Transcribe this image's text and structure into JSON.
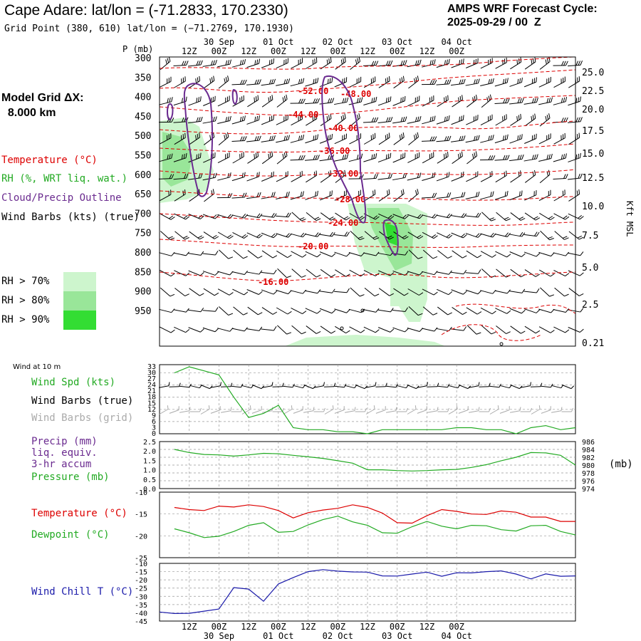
{
  "header": {
    "title": "Cape Adare:  lat/lon = (-71.2833, 170.2330)",
    "grid_point": "Grid Point (380, 610) lat/lon = (−71.2769, 170.1930)",
    "cycle_line1": "AMPS WRF Forecast Cycle:",
    "cycle_line2": "2025-09-29 / 00  Z",
    "model_grid_line1": "Model Grid ΔX:",
    "model_grid_line2": "  8.000 km"
  },
  "legend": {
    "temperature": "Temperature (°C)",
    "rh": "RH (%, WRT liq. wat.)",
    "cloud": "Cloud/Precip Outline",
    "wind_barbs": "Wind Barbs (kts) (true)",
    "rh70": "RH > 70%",
    "rh80": "RH > 80%",
    "rh90": "RH > 90%",
    "wind_10m": "Wind at 10 m",
    "wind_spd": "Wind Spd (kts)",
    "wind_barbs_true": "Wind Barbs (true)",
    "wind_barbs_grid": "Wind Barbs (grid)",
    "precip1": "Precip (mm)",
    "precip2": "liq. equiv.",
    "precip3": "3-hr accum",
    "pressure": "Pressure (mb)",
    "press_unit": "(mb)",
    "temp2": "Temperature (°C)",
    "dewpoint": "Dewpoint (°C)",
    "windchill": "Wind Chill T (°C)"
  },
  "colors": {
    "temperature": "#dd0000",
    "rh": "#22aa22",
    "cloud": "#6a2a8f",
    "wind_chill": "#1a1aaa",
    "rh70": "#cdf5cd",
    "rh80": "#99e699",
    "rh90": "#33dd33",
    "grid_barb": "#aaaaaa"
  },
  "chart_data": [
    {
      "type": "line",
      "panel": "cross-section",
      "xticks_top": [
        "12Z",
        "00Z",
        "12Z",
        "00Z",
        "12Z",
        "00Z",
        "12Z",
        "00Z",
        "12Z",
        "00Z"
      ],
      "date_labels_top": [
        "30 Sep",
        "01 Oct",
        "02 Oct",
        "03 Oct",
        "04 Oct"
      ],
      "ylabel_left": "P (mb)",
      "pressure_ticks": [
        "300",
        "350",
        "400",
        "450",
        "500",
        "550",
        "600",
        "650",
        "700",
        "750",
        "800",
        "850",
        "900",
        "950"
      ],
      "ylabel_right": "Kft MSL",
      "height_ticks": [
        "25.0",
        "22.5",
        "20.0",
        "17.5",
        "15.0",
        "12.5",
        "10.0",
        "7.5",
        "5.0",
        "2.5",
        "0.21"
      ],
      "temperature_contour_labels": [
        "-52.00",
        "-48.00",
        "-44.00",
        "-40.00",
        "-36.00",
        "-32.00",
        "-28.00",
        "-24.00",
        "-20.00",
        "-16.00"
      ]
    },
    {
      "type": "line",
      "panel": "wind-10m",
      "x_hours": [
        6,
        12,
        18,
        24,
        30,
        36,
        42,
        48,
        54,
        60,
        66,
        72,
        78,
        84,
        90,
        96,
        102,
        108,
        114,
        120,
        126,
        132,
        138,
        144,
        150,
        156,
        162,
        168
      ],
      "series": [
        {
          "name": "Wind Spd (kts)",
          "values": [
            30,
            33,
            31,
            29,
            18,
            8,
            10,
            14,
            3,
            2,
            2,
            1,
            1,
            0,
            2,
            2,
            2,
            2,
            2,
            3,
            3,
            2,
            2,
            0,
            3,
            4,
            2,
            3
          ]
        }
      ],
      "y_ticks": [
        "33",
        "30",
        "27",
        "24",
        "21",
        "18",
        "15",
        "12",
        "9",
        "6",
        "3",
        "0"
      ],
      "ylim": [
        0,
        33
      ]
    },
    {
      "type": "line",
      "panel": "precip-pressure",
      "x_hours": [
        6,
        12,
        18,
        24,
        30,
        36,
        42,
        48,
        54,
        60,
        66,
        72,
        78,
        84,
        90,
        96,
        102,
        108,
        114,
        120,
        126,
        132,
        138,
        144,
        150,
        156,
        162,
        168
      ],
      "series": [
        {
          "name": "Pressure (mb)",
          "values": [
            984.0,
            983.2,
            982.7,
            982.6,
            982.3,
            982.6,
            983.0,
            982.9,
            982.5,
            982.1,
            981.7,
            981.1,
            980.5,
            978.8,
            978.8,
            978.6,
            978.5,
            978.6,
            978.8,
            978.9,
            979.4,
            980.1,
            981.1,
            982.0,
            983.2,
            983.1,
            982.5,
            980.0
          ]
        }
      ],
      "y_ticks_left": [
        "2.5",
        "2.0",
        "1.5",
        "1.0",
        "0.5",
        "0.0"
      ],
      "y_ticks_right": [
        "986",
        "984",
        "982",
        "980",
        "978",
        "976",
        "974"
      ],
      "ylim": [
        974,
        986
      ]
    },
    {
      "type": "line",
      "panel": "temp-dewpoint",
      "x_hours": [
        6,
        12,
        18,
        24,
        30,
        36,
        42,
        48,
        54,
        60,
        66,
        72,
        78,
        84,
        90,
        96,
        102,
        108,
        114,
        120,
        126,
        132,
        138,
        144,
        150,
        156,
        162,
        168
      ],
      "series": [
        {
          "name": "Temperature (°C)",
          "values": [
            -13.5,
            -14.0,
            -14.2,
            -13.2,
            -13.4,
            -12.9,
            -13.3,
            -14.2,
            -15.9,
            -14.7,
            -14.1,
            -13.7,
            -12.9,
            -13.5,
            -14.8,
            -17.0,
            -17.1,
            -15.4,
            -14.0,
            -14.4,
            -15.0,
            -15.1,
            -14.3,
            -14.6,
            -15.7,
            -15.7,
            -16.7,
            -16.7
          ]
        },
        {
          "name": "Dewpoint (°C)",
          "values": [
            -18.4,
            -19.3,
            -20.4,
            -20.1,
            -19.0,
            -17.6,
            -17.0,
            -19.2,
            -19.0,
            -17.5,
            -16.3,
            -15.5,
            -16.8,
            -17.6,
            -19.3,
            -19.4,
            -17.9,
            -16.7,
            -17.8,
            -18.4,
            -17.6,
            -17.7,
            -18.6,
            -18.9,
            -17.7,
            -17.6,
            -19.0,
            -19.8
          ]
        }
      ],
      "y_ticks": [
        "-10",
        "-15",
        "-20",
        "-25"
      ],
      "ylim": [
        -25,
        -10
      ]
    },
    {
      "type": "line",
      "panel": "wind-chill",
      "x_hours": [
        0,
        6,
        12,
        18,
        24,
        30,
        36,
        42,
        48,
        54,
        60,
        66,
        72,
        78,
        84,
        90,
        96,
        102,
        108,
        114,
        120,
        126,
        132,
        138,
        144,
        150,
        156,
        162,
        168
      ],
      "series": [
        {
          "name": "Wind Chill T (°C)",
          "values": [
            -39.5,
            -40.4,
            -40.3,
            -39.0,
            -37.7,
            -24.7,
            -25.6,
            -33.0,
            -22.5,
            -18.6,
            -15.0,
            -13.8,
            -14.7,
            -15.2,
            -15.3,
            -17.6,
            -17.7,
            -16.5,
            -15.3,
            -17.8,
            -15.7,
            -15.8,
            -15.0,
            -14.6,
            -16.5,
            -19.4,
            -16.4,
            -17.8,
            -17.6
          ]
        }
      ],
      "y_ticks": [
        "-10",
        "-15",
        "-20",
        "-25",
        "-30",
        "-35",
        "-40",
        "-45"
      ],
      "ylim": [
        -45,
        -10
      ],
      "xticks_bottom": [
        "12Z",
        "00Z",
        "12Z",
        "00Z",
        "12Z",
        "00Z",
        "12Z",
        "00Z",
        "12Z",
        "00Z"
      ],
      "date_labels_bottom": [
        "30 Sep",
        "01 Oct",
        "02 Oct",
        "03 Oct",
        "04 Oct"
      ]
    }
  ]
}
